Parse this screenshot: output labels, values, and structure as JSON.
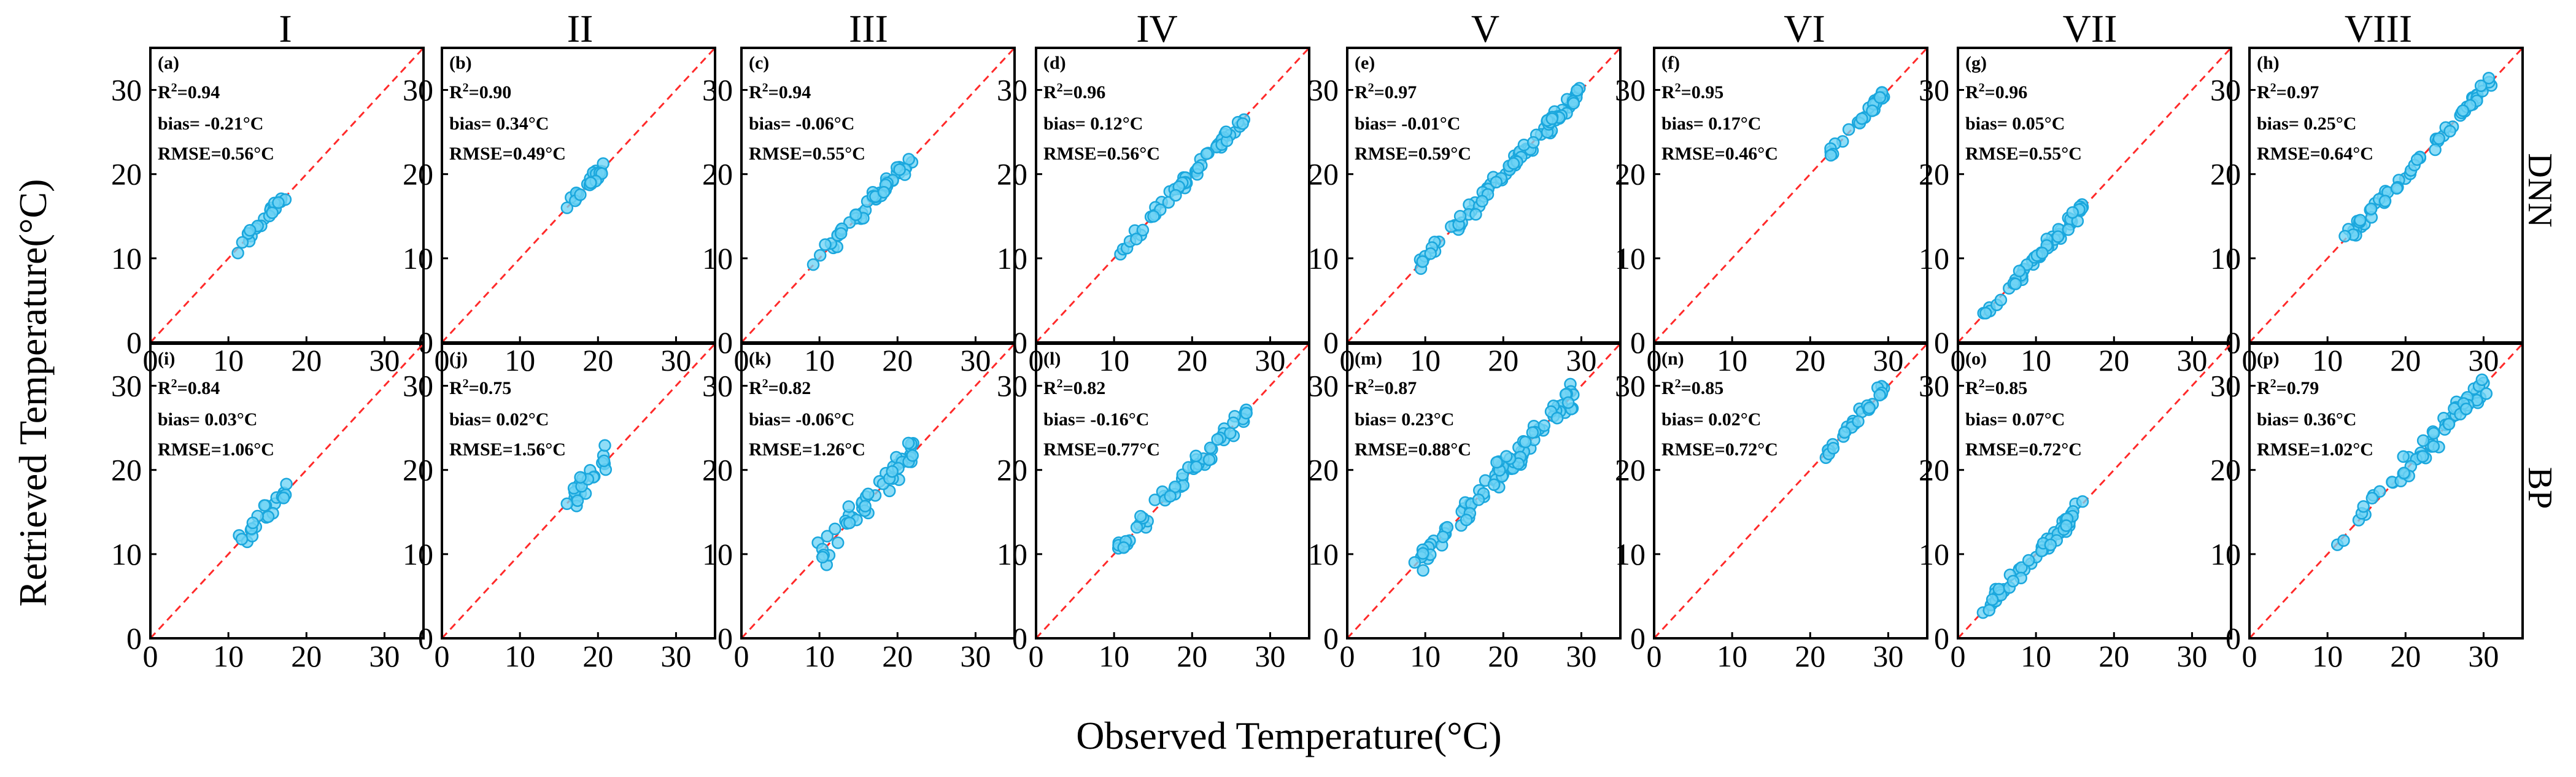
{
  "figure": {
    "xlabel": "Observed Temperature(°C)",
    "ylabel": "Retrieved Temperature(°C)",
    "column_titles": [
      "I",
      "II",
      "III",
      "IV",
      "V",
      "VI",
      "VII",
      "VIII"
    ],
    "row_labels": [
      "DNN",
      "BP"
    ],
    "colors": {
      "points_fill": "#6fd3f5",
      "points_edge": "#1aa7dd",
      "one_to_one_line": "#ff2a2a"
    }
  },
  "chart_data": {
    "type": "scatter",
    "axis_range": [
      0,
      35
    ],
    "x_ticks": [
      0,
      10,
      20,
      30
    ],
    "y_ticks": [
      0,
      10,
      20,
      30
    ],
    "tick_labels": [
      "0",
      "10",
      "20",
      "30"
    ],
    "grid": false,
    "reference_line": "1:1 dashed",
    "panels": [
      {
        "id": "(a)",
        "row": "DNN",
        "col": "I",
        "r2_prefix": "R",
        "r2_value": "=0.94",
        "bias": "bias= -0.21°C",
        "rmse": "RMSE=0.56°C",
        "xmin": 11,
        "xmax": 17.5,
        "spread": 0.6,
        "n": 22
      },
      {
        "id": "(b)",
        "row": "DNN",
        "col": "II",
        "r2_prefix": "R",
        "r2_value": "=0.90",
        "bias": "bias= 0.34°C",
        "rmse": "RMSE=0.49°C",
        "xmin": 15.5,
        "xmax": 21,
        "spread": 0.6,
        "n": 24
      },
      {
        "id": "(c)",
        "row": "DNN",
        "col": "III",
        "r2_prefix": "R",
        "r2_value": "=0.94",
        "bias": "bias= -0.06°C",
        "rmse": "RMSE=0.55°C",
        "xmin": 9,
        "xmax": 22,
        "spread": 0.7,
        "n": 50
      },
      {
        "id": "(d)",
        "row": "DNN",
        "col": "IV",
        "r2_prefix": "R",
        "r2_value": "=0.96",
        "bias": "bias= 0.12°C",
        "rmse": "RMSE=0.56°C",
        "xmin": 10.5,
        "xmax": 27,
        "spread": 0.7,
        "n": 55
      },
      {
        "id": "(e)",
        "row": "DNN",
        "col": "V",
        "r2_prefix": "R",
        "r2_value": "=0.97",
        "bias": "bias= -0.01°C",
        "rmse": "RMSE=0.59°C",
        "xmin": 8.5,
        "xmax": 30,
        "spread": 0.8,
        "n": 90
      },
      {
        "id": "(f)",
        "row": "DNN",
        "col": "VI",
        "r2_prefix": "R",
        "r2_value": "=0.95",
        "bias": "bias= 0.17°C",
        "rmse": "RMSE=0.46°C",
        "xmin": 21.5,
        "xmax": 29.5,
        "spread": 0.5,
        "n": 28
      },
      {
        "id": "(g)",
        "row": "DNN",
        "col": "VII",
        "r2_prefix": "R",
        "r2_value": "=0.96",
        "bias": "bias= 0.05°C",
        "rmse": "RMSE=0.55°C",
        "xmin": 3,
        "xmax": 16,
        "spread": 0.6,
        "n": 55
      },
      {
        "id": "(h)",
        "row": "DNN",
        "col": "VIII",
        "r2_prefix": "R",
        "r2_value": "=0.97",
        "bias": "bias= 0.25°C",
        "rmse": "RMSE=0.64°C",
        "xmin": 10.5,
        "xmax": 31,
        "spread": 0.7,
        "n": 60
      },
      {
        "id": "(i)",
        "row": "BP",
        "col": "I",
        "r2_prefix": "R",
        "r2_value": "=0.84",
        "bias": "bias= 0.03°C",
        "rmse": "RMSE=1.06°C",
        "xmin": 11,
        "xmax": 17.5,
        "spread": 1.0,
        "n": 22
      },
      {
        "id": "(j)",
        "row": "BP",
        "col": "II",
        "r2_prefix": "R",
        "r2_value": "=0.75",
        "bias": "bias= 0.02°C",
        "rmse": "RMSE=1.56°C",
        "xmin": 15.5,
        "xmax": 21,
        "spread": 1.5,
        "n": 24
      },
      {
        "id": "(k)",
        "row": "BP",
        "col": "III",
        "r2_prefix": "R",
        "r2_value": "=0.82",
        "bias": "bias= -0.06°C",
        "rmse": "RMSE=1.26°C",
        "xmin": 9,
        "xmax": 22,
        "spread": 1.2,
        "n": 50
      },
      {
        "id": "(l)",
        "row": "BP",
        "col": "IV",
        "r2_prefix": "R",
        "r2_value": "=0.82",
        "bias": "bias= -0.16°C",
        "rmse": "RMSE=0.77°C",
        "xmin": 10.5,
        "xmax": 27,
        "spread": 0.9,
        "n": 55
      },
      {
        "id": "(m)",
        "row": "BP",
        "col": "V",
        "r2_prefix": "R",
        "r2_value": "=0.87",
        "bias": "bias= 0.23°C",
        "rmse": "RMSE=0.88°C",
        "xmin": 8.5,
        "xmax": 29,
        "spread": 1.1,
        "n": 90
      },
      {
        "id": "(n)",
        "row": "BP",
        "col": "VI",
        "r2_prefix": "R",
        "r2_value": "=0.85",
        "bias": "bias= 0.02°C",
        "rmse": "RMSE=0.72°C",
        "xmin": 21.5,
        "xmax": 29.5,
        "spread": 0.7,
        "n": 28
      },
      {
        "id": "(o)",
        "row": "BP",
        "col": "VII",
        "r2_prefix": "R",
        "r2_value": "=0.85",
        "bias": "bias= 0.07°C",
        "rmse": "RMSE=0.72°C",
        "xmin": 3,
        "xmax": 16,
        "spread": 0.8,
        "n": 55
      },
      {
        "id": "(p)",
        "row": "BP",
        "col": "VIII",
        "r2_prefix": "R",
        "r2_value": "=0.79",
        "bias": "bias= 0.36°C",
        "rmse": "RMSE=1.02°C",
        "xmin": 10.5,
        "xmax": 31,
        "spread": 1.1,
        "n": 60
      }
    ]
  }
}
